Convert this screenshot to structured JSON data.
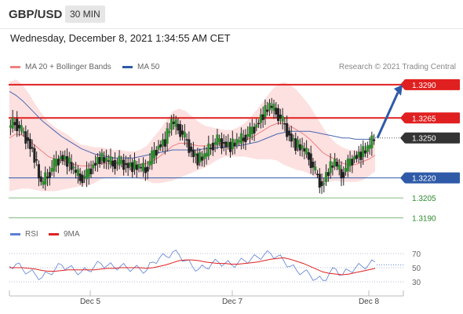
{
  "header": {
    "pair": "GBP/USD",
    "timeframe": "30 MIN"
  },
  "date": "Wednesday, December 8, 2021 1:34:55 AM CET",
  "legend": {
    "ma20": {
      "label": "MA 20 + Bollinger Bands",
      "color": "#f08080"
    },
    "ma50": {
      "label": "MA 50",
      "color": "#2e5aa8"
    },
    "credit": "Research © 2021 Trading Central"
  },
  "rsi_legend": {
    "rsi": {
      "label": "RSI",
      "color": "#5b7fd6"
    },
    "ma": {
      "label": "9MA",
      "color": "#e02020"
    }
  },
  "chart_data": {
    "type": "line",
    "price_levels": [
      {
        "value": 1.329,
        "label": "1.3290",
        "style": "resistance",
        "color": "#e02020"
      },
      {
        "value": 1.3265,
        "label": "1.3265",
        "style": "resistance",
        "color": "#e02020"
      },
      {
        "value": 1.325,
        "label": "1.3250",
        "style": "current",
        "color": "#333333"
      },
      {
        "value": 1.322,
        "label": "1.3220",
        "style": "support",
        "color": "#2e5aa8"
      },
      {
        "value": 1.3205,
        "label": "1.3205",
        "style": "support",
        "color": "#2e8b2e"
      },
      {
        "value": 1.319,
        "label": "1.3190",
        "style": "support",
        "color": "#2e8b2e"
      }
    ],
    "x_ticks": [
      "Dec 5",
      "Dec 7",
      "Dec 8"
    ],
    "rsi_ticks": [
      "70",
      "50",
      "30"
    ],
    "price_path": [
      1.3258,
      1.3262,
      1.3255,
      1.3248,
      1.3236,
      1.3215,
      1.3222,
      1.323,
      1.3236,
      1.3233,
      1.3226,
      1.322,
      1.3222,
      1.323,
      1.3235,
      1.3233,
      1.3231,
      1.3232,
      1.323,
      1.3229,
      1.3228,
      1.3226,
      1.3236,
      1.3244,
      1.3248,
      1.3262,
      1.3258,
      1.325,
      1.324,
      1.3234,
      1.3236,
      1.3244,
      1.3248,
      1.3246,
      1.3244,
      1.3247,
      1.325,
      1.3254,
      1.326,
      1.3268,
      1.3274,
      1.327,
      1.3262,
      1.3252,
      1.3245,
      1.3242,
      1.3236,
      1.3224,
      1.3214,
      1.3226,
      1.3232,
      1.3222,
      1.323,
      1.3236,
      1.3238,
      1.3242,
      1.325
    ],
    "ma20": [
      1.325,
      1.3253,
      1.3252,
      1.3248,
      1.3244,
      1.324,
      1.3236,
      1.3234,
      1.3233,
      1.3232,
      1.323,
      1.3229,
      1.3229,
      1.323,
      1.3231,
      1.3231,
      1.3231,
      1.3231,
      1.3231,
      1.323,
      1.323,
      1.3231,
      1.3233,
      1.3236,
      1.324,
      1.3244,
      1.3246,
      1.3246,
      1.3245,
      1.3244,
      1.3244,
      1.3245,
      1.3246,
      1.3246,
      1.3246,
      1.3247,
      1.3248,
      1.325,
      1.3253,
      1.3256,
      1.3259,
      1.3261,
      1.3261,
      1.3259,
      1.3256,
      1.3253,
      1.3249,
      1.3244,
      1.3239,
      1.3236,
      1.3234,
      1.3231,
      1.323,
      1.323,
      1.3232,
      1.3234,
      1.3237
    ],
    "ma50": [
      1.3285,
      1.3282,
      1.3278,
      1.3273,
      1.3268,
      1.3263,
      1.3259,
      1.3255,
      1.3251,
      1.3248,
      1.3245,
      1.3242,
      1.324,
      1.3238,
      1.3237,
      1.3236,
      1.3235,
      1.3235,
      1.3235,
      1.3235,
      1.3236,
      1.3237,
      1.3238,
      1.3239,
      1.324,
      1.3241,
      1.3241,
      1.3241,
      1.3241,
      1.3241,
      1.3242,
      1.3242,
      1.3243,
      1.3243,
      1.3244,
      1.3244,
      1.3245,
      1.3246,
      1.3247,
      1.3249,
      1.3251,
      1.3253,
      1.3254,
      1.3255,
      1.3255,
      1.3255,
      1.3255,
      1.3254,
      1.3253,
      1.3252,
      1.3251,
      1.325,
      1.325,
      1.3249,
      1.3249,
      1.3249,
      1.3249
    ],
    "bb_upper": [
      1.3292,
      1.3294,
      1.329,
      1.3283,
      1.3275,
      1.3268,
      1.3262,
      1.3258,
      1.3255,
      1.3252,
      1.3248,
      1.3245,
      1.3244,
      1.3243,
      1.3243,
      1.3242,
      1.3241,
      1.3241,
      1.324,
      1.324,
      1.3241,
      1.3244,
      1.325,
      1.3256,
      1.3263,
      1.327,
      1.3272,
      1.327,
      1.3266,
      1.3262,
      1.3259,
      1.3258,
      1.3257,
      1.3256,
      1.3256,
      1.3258,
      1.3261,
      1.3266,
      1.3272,
      1.3278,
      1.3285,
      1.329,
      1.3292,
      1.329,
      1.3286,
      1.328,
      1.3274,
      1.3266,
      1.3258,
      1.3251,
      1.3246,
      1.3243,
      1.3241,
      1.3241,
      1.3242,
      1.3244,
      1.3248
    ],
    "bb_lower": [
      1.321,
      1.3211,
      1.3212,
      1.3212,
      1.3211,
      1.321,
      1.321,
      1.321,
      1.3211,
      1.3212,
      1.3213,
      1.3214,
      1.3214,
      1.3216,
      1.3219,
      1.322,
      1.322,
      1.3221,
      1.3221,
      1.322,
      1.3219,
      1.3218,
      1.3216,
      1.3216,
      1.3217,
      1.3218,
      1.322,
      1.3222,
      1.3224,
      1.3226,
      1.3228,
      1.3231,
      1.3234,
      1.3236,
      1.3236,
      1.3236,
      1.3236,
      1.3235,
      1.3234,
      1.3234,
      1.3234,
      1.3233,
      1.323,
      1.3228,
      1.3226,
      1.3225,
      1.3223,
      1.322,
      1.3217,
      1.3217,
      1.3218,
      1.3217,
      1.3217,
      1.3217,
      1.3218,
      1.3221,
      1.3225
    ],
    "rsi": [
      52,
      55,
      48,
      44,
      40,
      36,
      42,
      48,
      54,
      50,
      46,
      44,
      46,
      52,
      56,
      53,
      51,
      52,
      50,
      49,
      48,
      46,
      58,
      64,
      66,
      72,
      68,
      60,
      52,
      48,
      50,
      56,
      58,
      56,
      54,
      57,
      60,
      62,
      65,
      68,
      70,
      66,
      60,
      52,
      46,
      44,
      40,
      34,
      32,
      42,
      48,
      40,
      46,
      50,
      52,
      54,
      58
    ],
    "rsi_ma": [
      50,
      50,
      50,
      49,
      48,
      46,
      45,
      45,
      46,
      47,
      47,
      47,
      47,
      47,
      48,
      49,
      49,
      50,
      50,
      50,
      50,
      49,
      50,
      52,
      54,
      57,
      60,
      61,
      61,
      60,
      58,
      57,
      56,
      56,
      55,
      55,
      56,
      57,
      58,
      60,
      62,
      63,
      64,
      62,
      59,
      56,
      52,
      48,
      44,
      42,
      41,
      40,
      41,
      43,
      45,
      47,
      49
    ],
    "forecast_arrow": {
      "from": 1.325,
      "to": 1.329
    },
    "y_range": [
      1.3185,
      1.3297
    ]
  }
}
